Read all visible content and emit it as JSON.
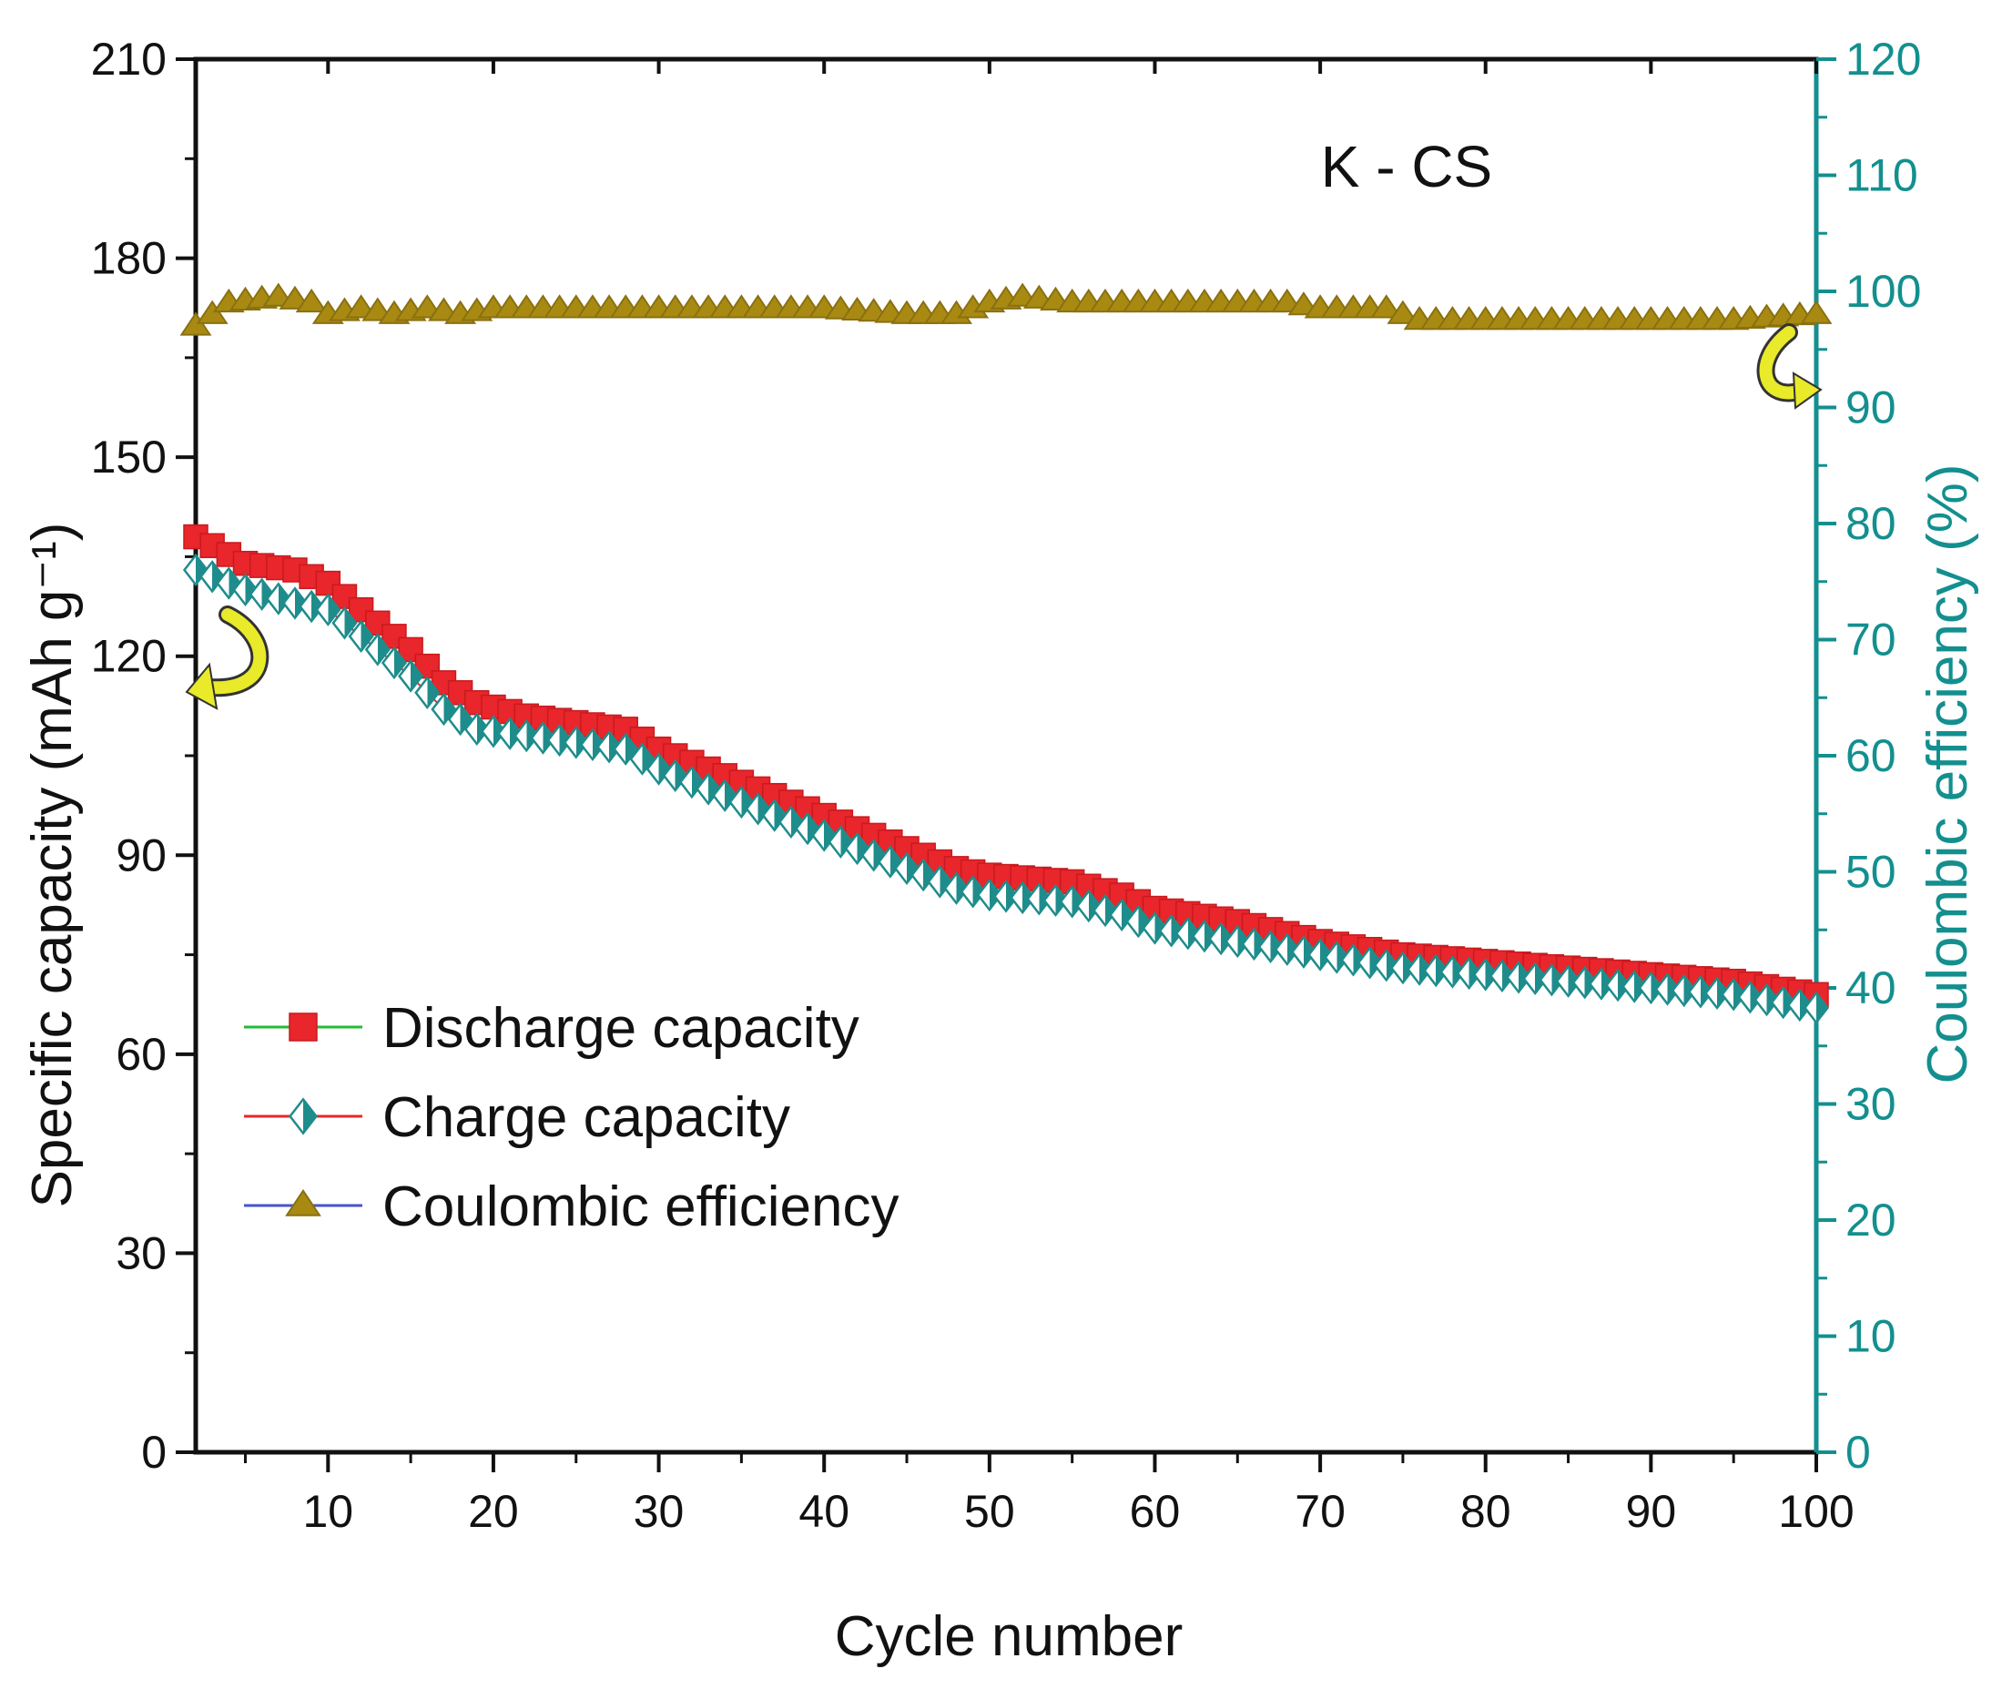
{
  "chart_data": {
    "type": "scatter",
    "annotation": "K - CS",
    "xlabel": "Cycle number",
    "ylabel_left": "Specific capacity (mAh g⁻¹)",
    "ylabel_right": "Coulombic efficiency (%)",
    "xlim": [
      2,
      100
    ],
    "ylim_left": [
      0,
      210
    ],
    "ylim_right": [
      0,
      120
    ],
    "x_ticks": [
      10,
      20,
      30,
      40,
      50,
      60,
      70,
      80,
      90,
      100
    ],
    "y_left_ticks": [
      0,
      30,
      60,
      90,
      120,
      150,
      180,
      210
    ],
    "y_right_ticks": [
      0,
      10,
      20,
      30,
      40,
      50,
      60,
      70,
      80,
      90,
      100,
      110,
      120
    ],
    "grid": false,
    "legend_position": "lower-left",
    "colors": {
      "discharge_marker": "#e8262b",
      "discharge_line": "#22bb33",
      "charge_marker": "#1f8c8c",
      "charge_line": "#e8262b",
      "efficiency_marker": "#a88a12",
      "efficiency_line": "#4455cc",
      "right_axis": "#138f8f",
      "left_axis": "#111111",
      "arrow": "#e8ea2a"
    },
    "series": [
      {
        "name": "Discharge capacity",
        "axis": "left",
        "marker": "square",
        "x": [
          2,
          5,
          8,
          10,
          12,
          15,
          17,
          19,
          22,
          25,
          28,
          30,
          35,
          40,
          45,
          48,
          50,
          55,
          58,
          60,
          65,
          70,
          75,
          80,
          85,
          90,
          95,
          100
        ],
        "y": [
          138,
          134,
          133,
          131,
          127,
          121,
          116,
          113,
          111,
          110,
          109,
          106,
          101,
          96,
          91,
          88,
          87,
          86,
          84,
          82,
          80,
          77,
          75,
          74,
          73,
          72,
          71,
          69
        ]
      },
      {
        "name": "Charge capacity",
        "axis": "left",
        "marker": "half-diamond",
        "x": [
          2,
          5,
          8,
          10,
          12,
          15,
          17,
          19,
          22,
          25,
          28,
          30,
          35,
          40,
          45,
          48,
          50,
          55,
          58,
          60,
          65,
          70,
          75,
          80,
          85,
          90,
          95,
          100
        ],
        "y": [
          133,
          130,
          128,
          127,
          123,
          117,
          112,
          109,
          108,
          107,
          106,
          103,
          98,
          93,
          88,
          85,
          84,
          83,
          81,
          79,
          77,
          75,
          73,
          72,
          71,
          70,
          69,
          67
        ]
      },
      {
        "name": "Coulombic efficiency",
        "axis": "right",
        "marker": "triangle",
        "x": [
          2,
          4,
          7,
          9,
          10,
          12,
          14,
          16,
          18,
          20,
          25,
          30,
          35,
          40,
          45,
          48,
          50,
          52,
          55,
          60,
          65,
          68,
          70,
          74,
          76,
          80,
          85,
          90,
          95,
          100
        ],
        "y": [
          97,
          99,
          99.5,
          99,
          98,
          98.5,
          98,
          98.5,
          98,
          98.5,
          98.5,
          98.5,
          98.5,
          98.5,
          98,
          98,
          99,
          99.5,
          99,
          99,
          99,
          99,
          98.5,
          98.5,
          97.5,
          97.5,
          97.5,
          97.5,
          97.5,
          98
        ]
      }
    ]
  }
}
